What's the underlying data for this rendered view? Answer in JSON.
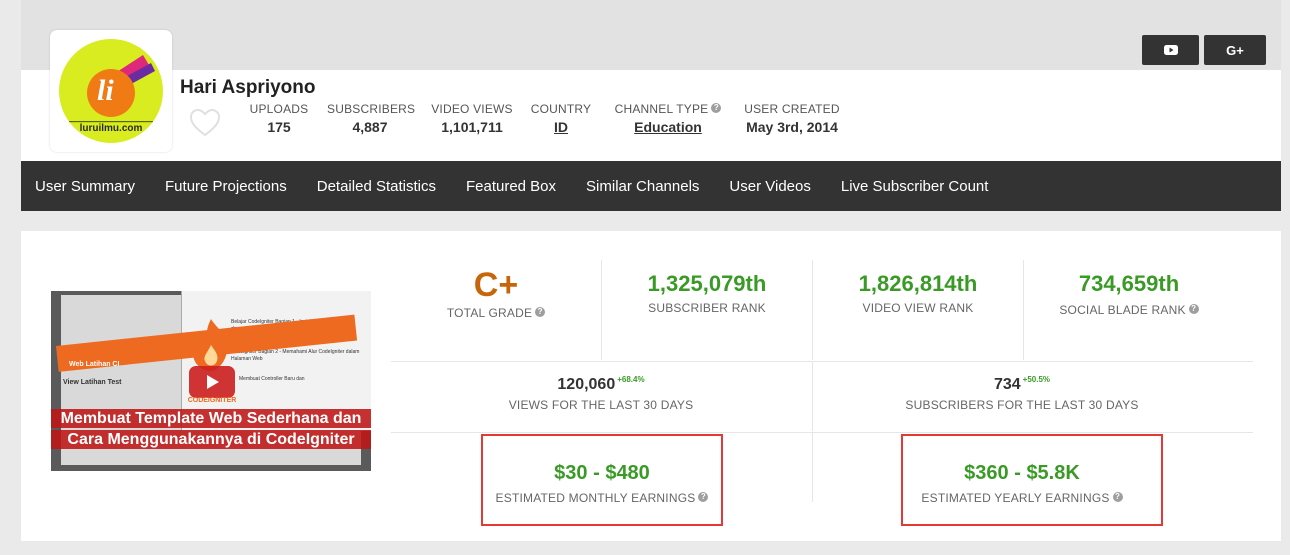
{
  "channel": {
    "name": "Hari Aspriyono",
    "logo_text": "li",
    "logo_caption": "luruilmu.com"
  },
  "stats": [
    {
      "label": "UPLOADS",
      "value": "175"
    },
    {
      "label": "SUBSCRIBERS",
      "value": "4,887"
    },
    {
      "label": "VIDEO VIEWS",
      "value": "1,101,711"
    },
    {
      "label": "COUNTRY",
      "value": "ID"
    },
    {
      "label": "CHANNEL TYPE",
      "value": "Education"
    },
    {
      "label": "USER CREATED",
      "value": "May 3rd, 2014"
    }
  ],
  "social": {
    "youtube_icon": "youtube-icon",
    "gplus_label": "G+"
  },
  "nav": [
    "User Summary",
    "Future Projections",
    "Detailed Statistics",
    "Featured Box",
    "Similar Channels",
    "User Videos",
    "Live Subscriber Count"
  ],
  "video": {
    "caption_line1": "Membuat Template Web Sederhana dan",
    "caption_line2": "Cara Menggunakannya di CodeIgniter",
    "brand": "CODEIGNITER",
    "list1": "Belajar CodeIgniter Bagian 1 - Instalasi CodeIgniter dengan Portable USB Web Server",
    "list2": "CodeIgniter Bagian 2 - Memahami Alur CodeIgniter dalam Halaman Web",
    "list3": "Membuat Controller Baru dan",
    "side_label1": "Web Latihan CI",
    "side_label2": "View Latihan Test"
  },
  "metrics": {
    "grade": {
      "value": "C+",
      "label": "TOTAL GRADE"
    },
    "subscriber_rank": {
      "value": "1,325,079th",
      "label": "SUBSCRIBER RANK"
    },
    "video_view_rank": {
      "value": "1,826,814th",
      "label": "VIDEO VIEW RANK"
    },
    "social_blade_rank": {
      "value": "734,659th",
      "label": "SOCIAL BLADE RANK"
    },
    "views_30": {
      "value": "120,060",
      "change": "+68.4%",
      "label": "VIEWS FOR THE LAST 30 DAYS"
    },
    "subs_30": {
      "value": "734",
      "change": "+50.5%",
      "label": "SUBSCRIBERS FOR THE LAST 30 DAYS"
    },
    "monthly": {
      "value": "$30 - $480",
      "label": "ESTIMATED MONTHLY EARNINGS"
    },
    "yearly": {
      "value": "$360 - $5.8K",
      "label": "ESTIMATED YEARLY EARNINGS"
    }
  },
  "colors": {
    "accent_green": "#3a9a26",
    "grade_orange": "#c8650a",
    "nav_bg": "#333333",
    "highlight_red": "#e53935"
  }
}
